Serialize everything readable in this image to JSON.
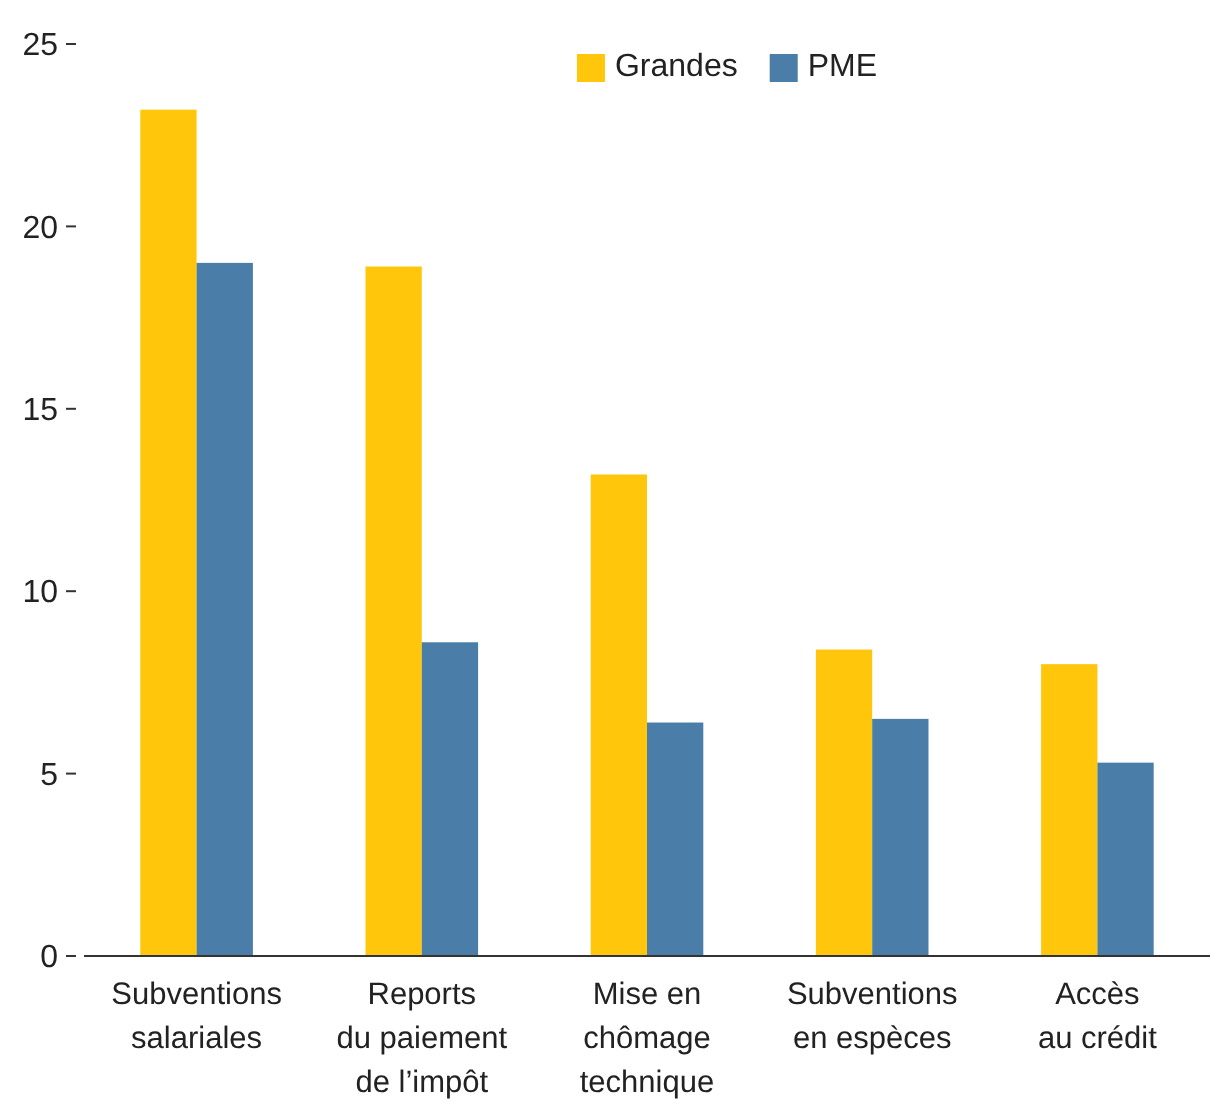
{
  "chart_data": {
    "type": "bar",
    "categories": [
      "Subventions\nsalariales",
      "Reports\ndu paiement\nde l’impôt",
      "Mise en\nchômage\ntechnique",
      "Subventions\nen espèces",
      "Accès\nau crédit"
    ],
    "series": [
      {
        "name": "Grandes",
        "color": "#ffc60b",
        "values": [
          23.2,
          18.9,
          13.2,
          8.4,
          8.0
        ]
      },
      {
        "name": "PME",
        "color": "#4a7ea8",
        "values": [
          19.0,
          8.6,
          6.4,
          6.5,
          5.3
        ]
      }
    ],
    "ylim": [
      0,
      25
    ],
    "yticks": [
      0,
      5,
      10,
      15,
      20,
      25
    ],
    "grid": false,
    "legend": "top"
  }
}
